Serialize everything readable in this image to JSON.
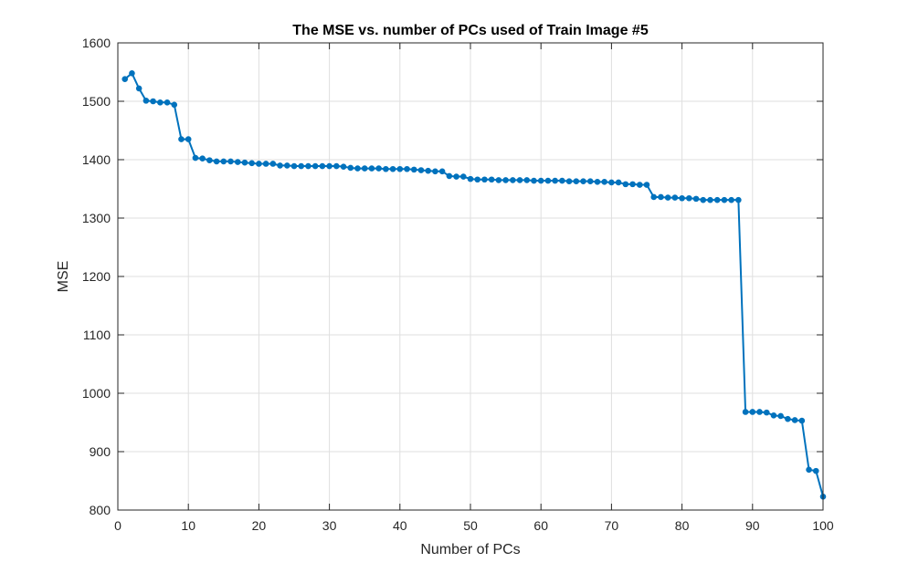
{
  "chart_data": {
    "type": "line",
    "title": "The MSE vs. number of PCs used of Train Image #5",
    "xlabel": "Number of PCs",
    "ylabel": "MSE",
    "xlim": [
      0,
      100
    ],
    "ylim": [
      800,
      1600
    ],
    "xticks": [
      0,
      10,
      20,
      30,
      40,
      50,
      60,
      70,
      80,
      90,
      100
    ],
    "yticks": [
      800,
      900,
      1000,
      1100,
      1200,
      1300,
      1400,
      1500,
      1600
    ],
    "grid": true,
    "marker": "circle",
    "series": [
      {
        "color": "#0072BD",
        "x": [
          1,
          2,
          3,
          4,
          5,
          6,
          7,
          8,
          9,
          10,
          11,
          12,
          13,
          14,
          15,
          16,
          17,
          18,
          19,
          20,
          21,
          22,
          23,
          24,
          25,
          26,
          27,
          28,
          29,
          30,
          31,
          32,
          33,
          34,
          35,
          36,
          37,
          38,
          39,
          40,
          41,
          42,
          43,
          44,
          45,
          46,
          47,
          48,
          49,
          50,
          51,
          52,
          53,
          54,
          55,
          56,
          57,
          58,
          59,
          60,
          61,
          62,
          63,
          64,
          65,
          66,
          67,
          68,
          69,
          70,
          71,
          72,
          73,
          74,
          75,
          76,
          77,
          78,
          79,
          80,
          81,
          82,
          83,
          84,
          85,
          86,
          87,
          88,
          89,
          90,
          91,
          92,
          93,
          94,
          95,
          96,
          97,
          98,
          99,
          100
        ],
        "y": [
          1538,
          1548,
          1522,
          1501,
          1500,
          1498,
          1498,
          1494,
          1435,
          1435,
          1403,
          1402,
          1399,
          1397,
          1397,
          1397,
          1396,
          1395,
          1394,
          1393,
          1393,
          1393,
          1390,
          1390,
          1389,
          1389,
          1389,
          1389,
          1389,
          1389,
          1389,
          1388,
          1386,
          1385,
          1385,
          1385,
          1385,
          1384,
          1384,
          1384,
          1384,
          1383,
          1382,
          1381,
          1380,
          1380,
          1372,
          1371,
          1371,
          1367,
          1366,
          1366,
          1366,
          1365,
          1365,
          1365,
          1365,
          1365,
          1364,
          1364,
          1364,
          1364,
          1364,
          1363,
          1363,
          1363,
          1363,
          1362,
          1362,
          1361,
          1361,
          1358,
          1358,
          1357,
          1357,
          1336,
          1336,
          1335,
          1335,
          1334,
          1334,
          1333,
          1331,
          1331,
          1331,
          1331,
          1331,
          1331,
          968,
          968,
          968,
          967,
          962,
          961,
          956,
          954,
          953,
          869,
          867,
          823
        ]
      }
    ]
  }
}
